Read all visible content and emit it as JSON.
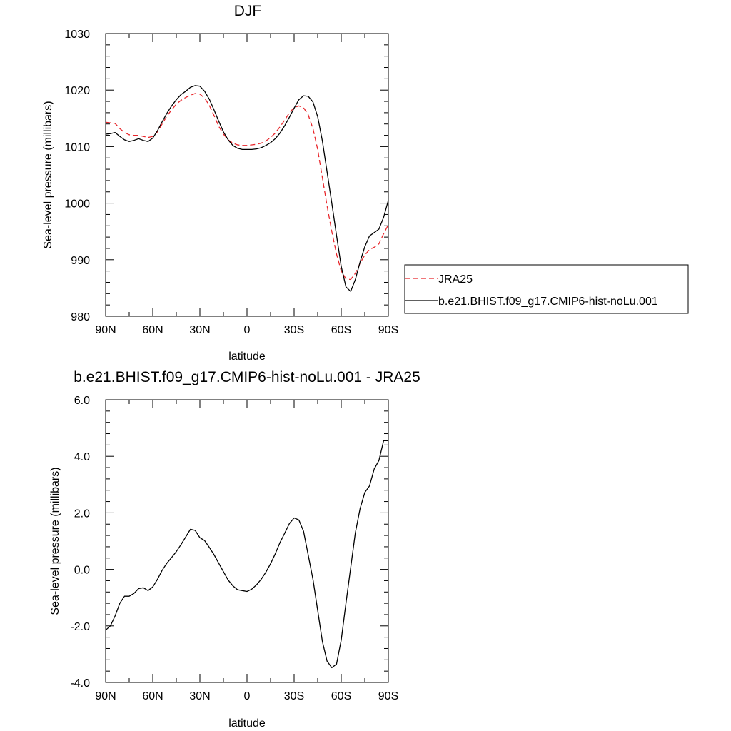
{
  "chart_data": [
    {
      "type": "line",
      "title": "DJF",
      "xlabel": "latitude",
      "ylabel": "Sea-level pressure (millibars)",
      "xlim": [
        90,
        -90
      ],
      "ylim": [
        980,
        1030
      ],
      "x_ticks": [
        90,
        60,
        30,
        0,
        -30,
        -60,
        -90
      ],
      "x_tick_labels": [
        "90N",
        "60N",
        "30N",
        "0",
        "30S",
        "60S",
        "90S"
      ],
      "y_ticks": [
        980,
        990,
        1000,
        1010,
        1020,
        1030
      ],
      "y_tick_labels": [
        "980",
        "990",
        "1000",
        "1010",
        "1020",
        "1030"
      ],
      "grid": false,
      "legend_position": "right",
      "legend": [
        "JRA25",
        "b.e21.BHIST.f09_g17.CMIP6-hist-noLu.001"
      ],
      "series": [
        {
          "name": "JRA25",
          "color": "#e8262b",
          "dash": "dashed",
          "x": [
            90,
            87,
            84,
            81,
            78,
            75,
            72,
            69,
            66,
            63,
            60,
            57,
            54,
            51,
            48,
            45,
            42,
            39,
            36,
            33,
            30,
            27,
            24,
            21,
            18,
            15,
            12,
            9,
            6,
            3,
            0,
            -3,
            -6,
            -9,
            -12,
            -15,
            -18,
            -21,
            -24,
            -27,
            -30,
            -33,
            -36,
            -39,
            -42,
            -45,
            -48,
            -51,
            -54,
            -57,
            -60,
            -63,
            -66,
            -69,
            -72,
            -75,
            -78,
            -81,
            -84,
            -87,
            -90
          ],
          "y": [
            1014.3,
            1014.2,
            1014.1,
            1013.2,
            1012.5,
            1012.1,
            1012.0,
            1012.0,
            1011.8,
            1011.6,
            1011.8,
            1012.6,
            1014.0,
            1015.4,
            1016.5,
            1017.5,
            1018.2,
            1018.7,
            1019.1,
            1019.4,
            1019.3,
            1018.6,
            1017.3,
            1015.5,
            1013.6,
            1012.2,
            1011.2,
            1010.6,
            1010.3,
            1010.2,
            1010.2,
            1010.3,
            1010.4,
            1010.6,
            1011.0,
            1011.6,
            1012.4,
            1013.5,
            1014.7,
            1016.0,
            1016.9,
            1017.2,
            1016.9,
            1015.6,
            1013.2,
            1009.5,
            1004.5,
            999.5,
            995.0,
            991.0,
            988.0,
            986.6,
            986.5,
            987.6,
            989.4,
            990.8,
            991.8,
            992.2,
            992.8,
            994.6,
            996.2
          ]
        },
        {
          "name": "b.e21.BHIST.f09_g17.CMIP6-hist-noLu.001",
          "color": "#000000",
          "dash": "solid",
          "x": [
            90,
            87,
            84,
            81,
            78,
            75,
            72,
            69,
            66,
            63,
            60,
            57,
            54,
            51,
            48,
            45,
            42,
            39,
            36,
            33,
            30,
            27,
            24,
            21,
            18,
            15,
            12,
            9,
            6,
            3,
            0,
            -3,
            -6,
            -9,
            -12,
            -15,
            -18,
            -21,
            -24,
            -27,
            -30,
            -33,
            -36,
            -39,
            -42,
            -45,
            -48,
            -51,
            -54,
            -57,
            -60,
            -63,
            -66,
            -69,
            -72,
            -75,
            -78,
            -81,
            -84,
            -87,
            -90
          ],
          "y": [
            1012.2,
            1012.3,
            1012.5,
            1011.8,
            1011.2,
            1010.9,
            1011.1,
            1011.4,
            1011.1,
            1010.9,
            1011.5,
            1012.8,
            1014.4,
            1015.9,
            1017.2,
            1018.3,
            1019.2,
            1019.8,
            1020.5,
            1020.8,
            1020.7,
            1019.8,
            1018.4,
            1016.5,
            1014.5,
            1012.6,
            1011.2,
            1010.2,
            1009.7,
            1009.5,
            1009.5,
            1009.5,
            1009.6,
            1009.8,
            1010.2,
            1010.7,
            1011.4,
            1012.4,
            1013.7,
            1015.2,
            1016.8,
            1018.3,
            1019.0,
            1018.9,
            1017.9,
            1015.3,
            1011.0,
            1005.5,
            1000.0,
            994.3,
            988.8,
            985.2,
            984.4,
            986.5,
            989.6,
            992.3,
            994.2,
            994.8,
            995.4,
            997.5,
            1000.5
          ]
        }
      ]
    },
    {
      "type": "line",
      "title": "b.e21.BHIST.f09_g17.CMIP6-hist-noLu.001 - JRA25",
      "xlabel": "latitude",
      "ylabel": "Sea-level pressure (millibars)",
      "xlim": [
        90,
        -90
      ],
      "ylim": [
        -4.0,
        6.0
      ],
      "x_ticks": [
        90,
        60,
        30,
        0,
        -30,
        -60,
        -90
      ],
      "x_tick_labels": [
        "90N",
        "60N",
        "30N",
        "0",
        "30S",
        "60S",
        "90S"
      ],
      "y_ticks": [
        -4,
        -2,
        0,
        2,
        4,
        6
      ],
      "y_tick_labels": [
        "-4.0",
        "-2.0",
        "0.0",
        "2.0",
        "4.0",
        "6.0"
      ],
      "grid": false,
      "series": [
        {
          "color": "#000000",
          "dash": "solid",
          "x": [
            90,
            87,
            84,
            81,
            78,
            75,
            72,
            69,
            66,
            63,
            60,
            57,
            54,
            51,
            48,
            45,
            42,
            39,
            36,
            33,
            30,
            27,
            24,
            21,
            18,
            15,
            12,
            9,
            6,
            3,
            0,
            -3,
            -6,
            -9,
            -12,
            -15,
            -18,
            -21,
            -24,
            -27,
            -30,
            -33,
            -36,
            -39,
            -42,
            -45,
            -48,
            -51,
            -54,
            -57,
            -60,
            -63,
            -66,
            -69,
            -72,
            -75,
            -78,
            -81,
            -84,
            -87,
            -90
          ],
          "y": [
            -2.15,
            -2.0,
            -1.65,
            -1.2,
            -0.95,
            -0.95,
            -0.85,
            -0.68,
            -0.65,
            -0.75,
            -0.62,
            -0.35,
            -0.03,
            0.22,
            0.42,
            0.63,
            0.88,
            1.15,
            1.42,
            1.38,
            1.12,
            1.02,
            0.78,
            0.52,
            0.22,
            -0.08,
            -0.38,
            -0.58,
            -0.72,
            -0.75,
            -0.78,
            -0.7,
            -0.55,
            -0.35,
            -0.1,
            0.2,
            0.55,
            0.95,
            1.28,
            1.62,
            1.82,
            1.75,
            1.35,
            0.5,
            -0.35,
            -1.45,
            -2.55,
            -3.25,
            -3.48,
            -3.35,
            -2.5,
            -1.2,
            0.05,
            1.3,
            2.15,
            2.72,
            2.95,
            3.55,
            3.85,
            4.55,
            4.55
          ]
        }
      ]
    }
  ]
}
